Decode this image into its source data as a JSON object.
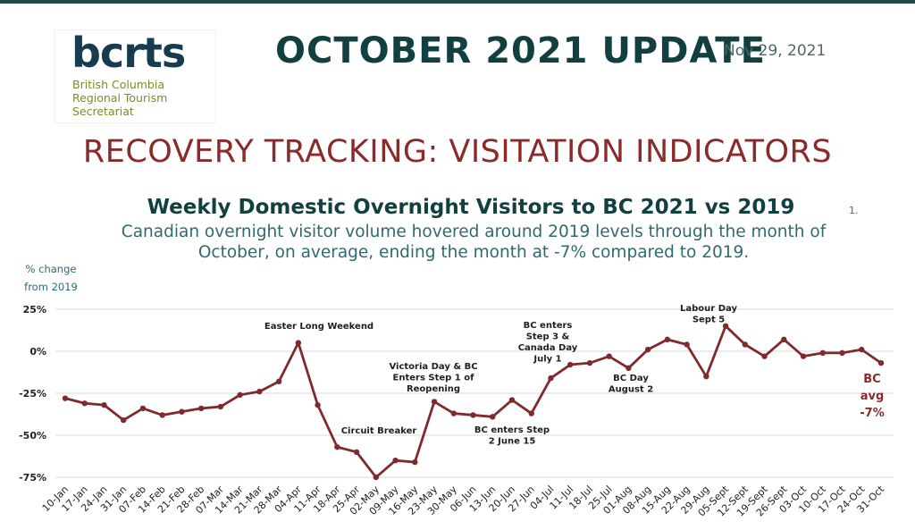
{
  "header": {
    "logo": {
      "wordmark": "bcrts",
      "line1": "British Columbia",
      "line2": "Regional Tourism",
      "line3": "Secretariat"
    },
    "title": "OCTOBER 2021 UPDATE",
    "date": "Nov 29, 2021",
    "section_title": "RECOVERY TRACKING: VISITATION INDICATORS"
  },
  "chart_data": {
    "type": "line",
    "title": "Weekly Domestic Overnight Visitors to BC 2021 vs 2019",
    "footnote": "1.",
    "subtitle": "Canadian overnight visitor volume hovered around 2019 levels through the month of October, on average, ending the month at -7% compared to 2019.",
    "ylabel_line1": "% change",
    "ylabel_line2": "from 2019",
    "ylim": [
      -75,
      25
    ],
    "yticks": [
      25,
      0,
      -25,
      -50,
      -75
    ],
    "ytick_labels": [
      "25%",
      "0%",
      "-25%",
      "-50%",
      "-75%"
    ],
    "grid": true,
    "categories": [
      "10-Jan",
      "17-Jan",
      "24-Jan",
      "31-Jan",
      "07-Feb",
      "14-Feb",
      "21-Feb",
      "28-Feb",
      "07-Mar",
      "14-Mar",
      "21-Mar",
      "28-Mar",
      "04-Apr",
      "11-Apr",
      "18-Apr",
      "25-Apr",
      "02-May",
      "09-May",
      "16-May",
      "23-May",
      "30-May",
      "06-Jun",
      "13-Jun",
      "20-Jun",
      "27-Jun",
      "04-Jul",
      "11-Jul",
      "18-Jul",
      "25-Jul",
      "01-Aug",
      "08-Aug",
      "15-Aug",
      "22-Aug",
      "29-Aug",
      "05-Sept",
      "12-Sept",
      "19-Sept",
      "26-Sept",
      "03-Oct",
      "10-Oct",
      "17-Oct",
      "24-Oct",
      "31-Oct"
    ],
    "series": [
      {
        "color": "#7f2a2e",
        "values": [
          -28,
          -31,
          -32,
          -41,
          -34,
          -38,
          -36,
          -34,
          -33,
          -26,
          -24,
          -18,
          5,
          -32,
          -57,
          -60,
          -75,
          -65,
          -66,
          -30,
          -37,
          -38,
          -39,
          -29,
          -37,
          -16,
          -8,
          -7,
          -3,
          -10,
          1,
          7,
          4,
          -15,
          15,
          4,
          -3,
          7,
          -3,
          -1,
          -1,
          1,
          -7
        ]
      }
    ],
    "annotations": [
      {
        "index": 12,
        "lines": [
          "Easter Long Weekend"
        ]
      },
      {
        "index": 15,
        "lines": [
          "Circuit Breaker"
        ]
      },
      {
        "index": 19,
        "lines": [
          "Victoria Day & BC",
          "Enters Step 1 of",
          "Reopening"
        ]
      },
      {
        "index": 22,
        "lines": [
          "BC enters Step",
          "2  June 15"
        ]
      },
      {
        "index": 25,
        "lines": [
          "BC enters",
          "Step 3 &",
          "Canada Day",
          "July 1"
        ]
      },
      {
        "index": 29,
        "lines": [
          "BC Day",
          "August 2"
        ]
      },
      {
        "index": 34,
        "lines": [
          "Labour Day",
          "Sept 5"
        ]
      }
    ],
    "bc_avg": {
      "lines": [
        "BC",
        "avg",
        "-7%"
      ]
    }
  }
}
